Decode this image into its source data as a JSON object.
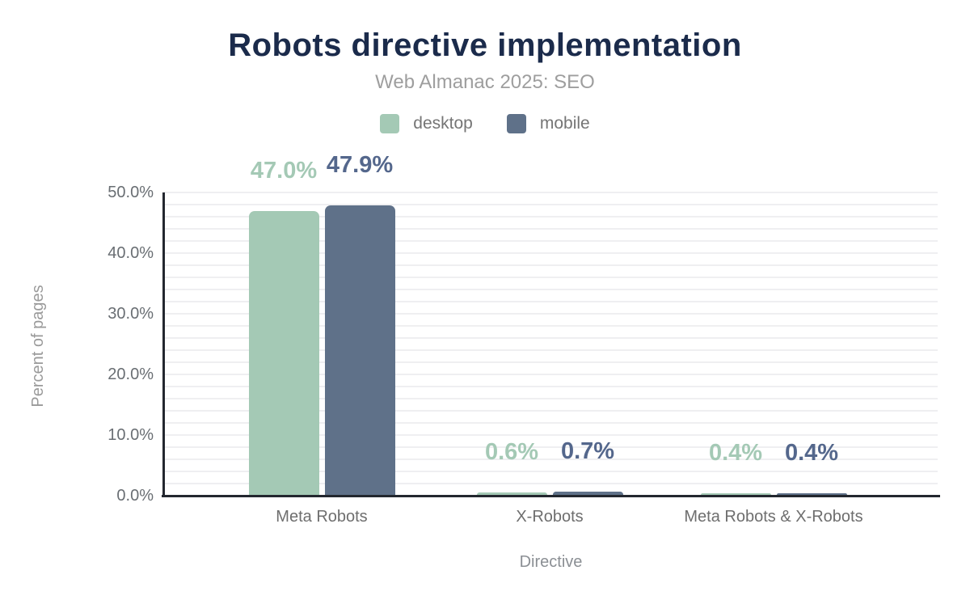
{
  "header": {
    "title": "Robots directive implementation",
    "subtitle": "Web Almanac 2025: SEO"
  },
  "legend": {
    "items": [
      {
        "label": "desktop",
        "color": "#a4c9b5"
      },
      {
        "label": "mobile",
        "color": "#5f7189"
      }
    ]
  },
  "chart_data": {
    "type": "bar",
    "title": "Robots directive implementation",
    "subtitle": "Web Almanac 2025: SEO",
    "categories": [
      "Meta Robots",
      "X-Robots",
      "Meta Robots & X-Robots"
    ],
    "series": [
      {
        "name": "desktop",
        "color": "#a4c9b5",
        "label_color": "#a4c9b5",
        "values": [
          47.0,
          0.6,
          0.4
        ],
        "value_labels": [
          "47.0%",
          "0.6%",
          "0.4%"
        ]
      },
      {
        "name": "mobile",
        "color": "#5f7189",
        "label_color": "#54678c",
        "values": [
          47.9,
          0.7,
          0.4
        ],
        "value_labels": [
          "47.9%",
          "0.7%",
          "0.4%"
        ]
      }
    ],
    "xlabel": "Directive",
    "ylabel": "Percent of pages",
    "ylim": [
      0,
      50
    ],
    "yticks": [
      {
        "value": 0,
        "label": "0.0%"
      },
      {
        "value": 10,
        "label": "10.0%"
      },
      {
        "value": 20,
        "label": "20.0%"
      },
      {
        "value": 30,
        "label": "30.0%"
      },
      {
        "value": 40,
        "label": "40.0%"
      },
      {
        "value": 50,
        "label": "50.0%"
      }
    ],
    "grid": {
      "on": true,
      "minor_step_pct": 2,
      "color": "#efeff1"
    },
    "legend_position": "top",
    "colors": {
      "title": "#1b2b4b",
      "subtitle": "#9e9e9e",
      "axis_line": "#23272f",
      "tick_text": "#696e73",
      "background": "#ffffff"
    }
  }
}
